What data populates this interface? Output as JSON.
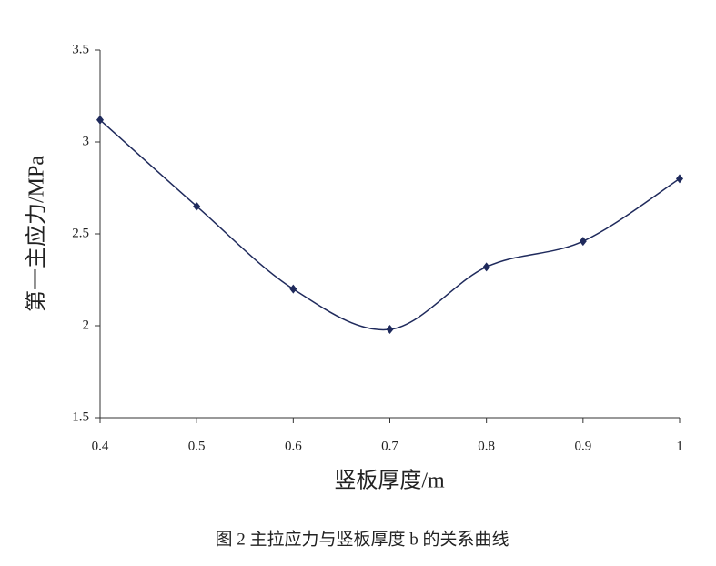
{
  "chart_data": {
    "type": "line",
    "x_label": "竖板厚度/m",
    "y_label": "第一主应力/MPa",
    "caption": "图 2 主拉应力与竖板厚度 b 的关系曲线",
    "x": [
      0.4,
      0.5,
      0.6,
      0.7,
      0.8,
      0.9,
      1
    ],
    "series": [
      {
        "color": "#1f2a5c",
        "values": [
          3.12,
          2.65,
          2.2,
          1.98,
          2.32,
          2.46,
          2.8
        ]
      }
    ],
    "xlim": [
      0.4,
      1
    ],
    "xticks": [
      0.4,
      0.5,
      0.6,
      0.7,
      0.8,
      0.9,
      1
    ],
    "ylim": [
      1.5,
      3.5
    ],
    "yticks": [
      1.5,
      2,
      2.5,
      3,
      3.5
    ],
    "smooth": true,
    "grid": false
  }
}
